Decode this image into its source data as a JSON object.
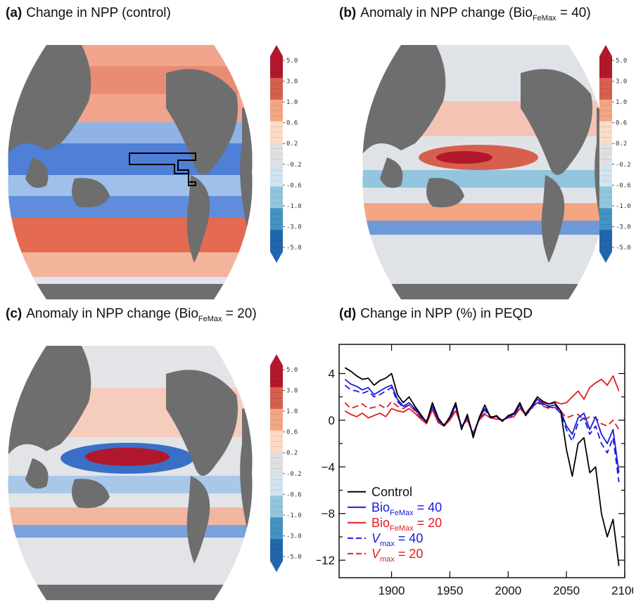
{
  "panels": {
    "a": {
      "label": "(a)",
      "title": "Change in NPP (control)"
    },
    "b": {
      "label": "(b)",
      "title_pre": "Anomaly in NPP change (Bio",
      "title_sub": "FeMax",
      "title_post": " = 40)"
    },
    "c": {
      "label": "(c)",
      "title_pre": "Anomaly in NPP change (Bio",
      "title_sub": "FeMax",
      "title_post": " = 20)"
    },
    "d": {
      "label": "(d)",
      "title": "Change in NPP (%) in PEQD"
    }
  },
  "colorbar": {
    "tick_labels": [
      "5.0",
      "3.0",
      "1.0",
      "0.6",
      "0.2",
      "-0.2",
      "-0.6",
      "-1.0",
      "-3.0",
      "-5.0"
    ],
    "colors": [
      "#b2182b",
      "#d6604d",
      "#f4a582",
      "#fddbc7",
      "#e0e0e0",
      "#d1e5f0",
      "#92c5de",
      "#4393c3",
      "#2166ac"
    ]
  },
  "maps": {
    "land_color": "#6e6e6e"
  },
  "chart_data": {
    "type": "line",
    "title": "Change in NPP (%) in PEQD",
    "xlim": [
      1855,
      2100
    ],
    "ylim": [
      -13.5,
      6.5
    ],
    "xticks": [
      1900,
      1950,
      2000,
      2050,
      2100
    ],
    "yticks": [
      4,
      0,
      -4,
      -8,
      -12
    ],
    "ytick_labels": [
      "4",
      "0",
      "−4",
      "−8",
      "−12"
    ],
    "x": [
      1860,
      1865,
      1870,
      1875,
      1880,
      1885,
      1890,
      1895,
      1900,
      1905,
      1910,
      1915,
      1920,
      1925,
      1930,
      1935,
      1940,
      1945,
      1950,
      1955,
      1960,
      1965,
      1970,
      1975,
      1980,
      1985,
      1990,
      1995,
      2000,
      2005,
      2010,
      2015,
      2020,
      2025,
      2030,
      2035,
      2040,
      2045,
      2050,
      2055,
      2060,
      2065,
      2070,
      2075,
      2080,
      2085,
      2090,
      2095
    ],
    "series": [
      {
        "name": "Control",
        "color": "#000000",
        "dash": false,
        "values": [
          4.5,
          4.2,
          3.8,
          3.5,
          3.6,
          3.0,
          3.4,
          3.6,
          4.0,
          2.2,
          1.5,
          2.0,
          1.2,
          0.5,
          -0.2,
          1.5,
          0.2,
          -0.5,
          0.3,
          1.5,
          -0.8,
          0.5,
          -1.5,
          0.2,
          1.3,
          0.2,
          0.4,
          -0.1,
          0.4,
          0.6,
          1.5,
          0.4,
          1.2,
          2.0,
          1.6,
          1.4,
          1.5,
          0.8,
          -2.5,
          -4.8,
          -2.0,
          -1.5,
          -4.5,
          -4.0,
          -8.0,
          -10.0,
          -8.5,
          -12.5
        ]
      },
      {
        "name": "Bio_FeMax = 40",
        "color": "#1a1adb",
        "dash": false,
        "values": [
          3.5,
          3.1,
          2.9,
          2.6,
          2.8,
          2.2,
          2.5,
          2.8,
          3.0,
          1.8,
          1.2,
          1.5,
          1.0,
          0.4,
          -0.1,
          1.2,
          0.0,
          -0.4,
          0.2,
          1.3,
          -0.6,
          0.3,
          -1.3,
          0.1,
          1.0,
          0.3,
          0.3,
          0.0,
          0.3,
          0.5,
          1.3,
          0.5,
          1.1,
          1.8,
          1.4,
          1.2,
          1.3,
          0.8,
          -0.5,
          -1.2,
          0.2,
          0.6,
          -0.8,
          0.3,
          -1.2,
          -2.0,
          -0.8,
          -4.5
        ]
      },
      {
        "name": "Bio_FeMax = 20",
        "color": "#e31a1c",
        "dash": false,
        "values": [
          0.8,
          0.5,
          0.3,
          0.6,
          0.2,
          0.4,
          0.6,
          0.3,
          1.0,
          0.8,
          0.7,
          1.0,
          0.6,
          0.1,
          -0.3,
          0.9,
          -0.2,
          -0.5,
          0.0,
          0.8,
          -0.5,
          0.0,
          -1.2,
          0.0,
          0.5,
          0.2,
          0.1,
          0.0,
          0.2,
          0.3,
          1.0,
          0.6,
          1.2,
          1.8,
          1.5,
          1.4,
          1.6,
          1.4,
          1.5,
          2.0,
          2.5,
          1.8,
          2.8,
          3.2,
          3.5,
          3.0,
          3.8,
          2.5
        ]
      },
      {
        "name": "V_max = 40",
        "color": "#1a1adb",
        "dash": true,
        "values": [
          3.0,
          2.6,
          2.5,
          2.3,
          2.5,
          2.0,
          2.2,
          2.5,
          2.8,
          1.6,
          1.1,
          1.3,
          0.9,
          0.3,
          -0.2,
          1.1,
          0.0,
          -0.4,
          0.1,
          1.2,
          -0.6,
          0.3,
          -1.2,
          0.1,
          0.9,
          0.2,
          0.3,
          0.0,
          0.3,
          0.4,
          1.2,
          0.4,
          1.0,
          1.6,
          1.3,
          1.1,
          1.1,
          0.6,
          -0.8,
          -1.8,
          -0.2,
          0.2,
          -1.2,
          -0.5,
          -2.0,
          -2.8,
          -1.5,
          -5.3
        ]
      },
      {
        "name": "V_max = 20",
        "color": "#e31a1c",
        "dash": true,
        "values": [
          1.5,
          1.0,
          1.2,
          1.4,
          1.0,
          1.1,
          1.3,
          1.0,
          1.6,
          1.2,
          1.0,
          1.3,
          0.8,
          0.2,
          -0.2,
          1.0,
          -0.1,
          -0.4,
          0.1,
          0.9,
          -0.5,
          0.1,
          -1.1,
          0.1,
          0.6,
          0.2,
          0.2,
          0.0,
          0.2,
          0.3,
          1.0,
          0.5,
          1.0,
          1.5,
          1.2,
          1.0,
          1.1,
          0.8,
          0.2,
          0.4,
          0.5,
          0.0,
          0.3,
          0.2,
          -0.3,
          -0.5,
          0.0,
          -0.8
        ]
      }
    ],
    "legend": {
      "placement": "bottom-left",
      "entries": [
        {
          "text": "Control",
          "sub": "",
          "post": "",
          "color": "#000000",
          "dash": false,
          "italic": false
        },
        {
          "text": "Bio",
          "sub": "FeMax",
          "post": " = 40",
          "color": "#1a1adb",
          "dash": false,
          "italic": false
        },
        {
          "text": "Bio",
          "sub": "FeMax",
          "post": " = 20",
          "color": "#e31a1c",
          "dash": false,
          "italic": false
        },
        {
          "text": "V",
          "sub": "max",
          "post": " = 40",
          "color": "#1a1adb",
          "dash": true,
          "italic": true
        },
        {
          "text": "V",
          "sub": "max",
          "post": " = 20",
          "color": "#e31a1c",
          "dash": true,
          "italic": true
        }
      ]
    },
    "grid": false
  }
}
